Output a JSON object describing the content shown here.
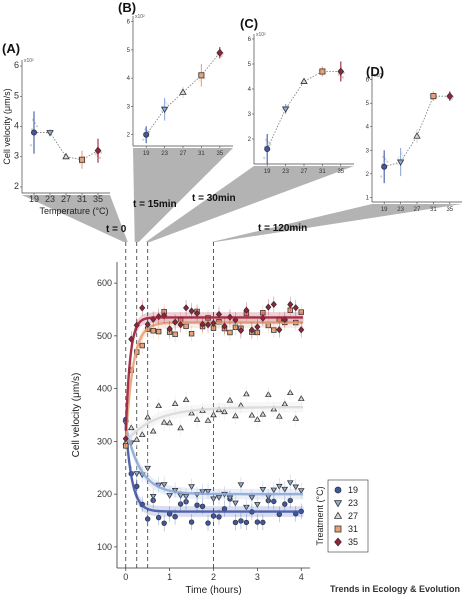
{
  "credit": "Trends in Ecology & Evolution",
  "colors": {
    "19": "#3f57a6",
    "23": "#8fa9d8",
    "27": "#d9d9d9",
    "31": "#e8a27a",
    "35": "#9c1f3a"
  },
  "chart_data": [
    {
      "panel": "(A)",
      "type": "line",
      "xlabel": "Temperature (°C)",
      "ylabel": "Cell velocity (μm/s)",
      "exponent": "x10²",
      "x": [
        19,
        23,
        27,
        31,
        35
      ],
      "y": [
        3.8,
        3.8,
        3.0,
        2.9,
        3.2
      ],
      "err": [
        0.7,
        0.1,
        0.1,
        0.3,
        0.4
      ],
      "yticks": [
        2,
        3,
        4,
        5,
        6
      ],
      "ylim": [
        1.8,
        6.2
      ],
      "time": "t = 0"
    },
    {
      "panel": "(B)",
      "type": "line",
      "exponent": "x10²",
      "x": [
        19,
        23,
        27,
        31,
        35
      ],
      "y": [
        2.0,
        2.9,
        3.5,
        4.1,
        4.9
      ],
      "err": [
        0.3,
        0.4,
        0.2,
        0.4,
        0.2
      ],
      "yticks": [
        2,
        3,
        4,
        5,
        6
      ],
      "ylim": [
        1.6,
        6.2
      ],
      "time": "t = 15min"
    },
    {
      "panel": "(C)",
      "type": "line",
      "exponent": "x10²",
      "x": [
        19,
        23,
        27,
        31,
        35
      ],
      "y": [
        1.6,
        3.2,
        4.3,
        4.7,
        4.7
      ],
      "err": [
        0.6,
        0.2,
        0.1,
        0.2,
        0.4
      ],
      "yticks": [
        2,
        3,
        4,
        5,
        6
      ],
      "ylim": [
        1.0,
        6.2
      ],
      "time": "t = 30min"
    },
    {
      "panel": "(D)",
      "type": "line",
      "exponent": "x10²",
      "x": [
        19,
        23,
        27,
        31,
        35
      ],
      "y": [
        2.3,
        2.5,
        3.6,
        5.3,
        5.3
      ],
      "err": [
        0.7,
        0.6,
        0.3,
        0.2,
        0.2
      ],
      "yticks": [
        1,
        2,
        3,
        4,
        5,
        6
      ],
      "ylim": [
        0.8,
        6.2
      ],
      "time": "t = 120min"
    },
    {
      "panel": "main",
      "type": "line",
      "xlabel": "Time (hours)",
      "ylabel": "Cell velocity (μm/s)",
      "xticks": [
        0,
        1,
        2,
        3,
        4
      ],
      "yticks": [
        100,
        200,
        300,
        400,
        500,
        600
      ],
      "xlim": [
        -0.2,
        4.2
      ],
      "ylim": [
        60,
        640
      ],
      "marker_times": [
        0,
        0.25,
        0.5,
        2
      ],
      "legend_title": "Treatment (°C)",
      "series": [
        {
          "name": "19",
          "start": 330,
          "end": 167,
          "k": 7,
          "marker": "circle"
        },
        {
          "name": "23",
          "start": 330,
          "end": 200,
          "k": 3,
          "marker": "triangle-down"
        },
        {
          "name": "27",
          "start": 300,
          "end": 365,
          "k": 1.5,
          "marker": "triangle-up"
        },
        {
          "name": "31",
          "start": 300,
          "end": 525,
          "k": 6,
          "marker": "square"
        },
        {
          "name": "35",
          "start": 320,
          "end": 535,
          "k": 10,
          "marker": "diamond"
        }
      ]
    }
  ]
}
